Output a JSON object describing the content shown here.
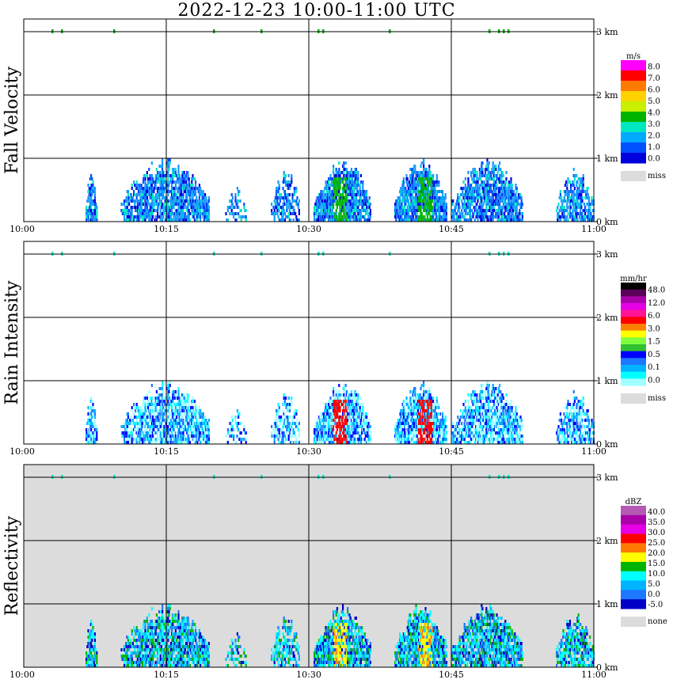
{
  "title": "2022-12-23   10:00-11:00 UTC",
  "chart_data": [
    {
      "type": "heatmap",
      "id": "fall-velocity",
      "ylabel": "Fall Velocity",
      "x_ticks": [
        "10:00",
        "10:15",
        "10:30",
        "10:45",
        "11:00"
      ],
      "y_ticks": [
        "0 km",
        "1 km",
        "2 km",
        "3 km"
      ],
      "xlim": [
        "10:00",
        "11:00"
      ],
      "ylim_km": [
        0,
        3.2
      ],
      "grid": true,
      "background": "#ffffff",
      "legend": {
        "unit": "m/s",
        "labels": [
          "8.0",
          "7.0",
          "6.0",
          "5.0",
          "4.0",
          "3.0",
          "2.0",
          "1.0",
          "0.0"
        ],
        "colors": [
          "#ff00ff",
          "#ff0000",
          "#ff7a00",
          "#ffd200",
          "#c8f000",
          "#00b400",
          "#00e8c0",
          "#00aaff",
          "#0050ff",
          "#0000dc"
        ],
        "miss_label": "miss",
        "miss_color": "#dcdcdc"
      },
      "cloud_palette": [
        "#0050ff",
        "#0000dc",
        "#1e90ff",
        "#1e90ff",
        "#00aaff",
        "#00e8c0"
      ],
      "cloud_events": [
        {
          "t": [
            6.5,
            7.6
          ],
          "h": 0.85,
          "d": 0.55,
          "peak": null
        },
        {
          "t": [
            10.2,
            19.5
          ],
          "h": 1.0,
          "d": 0.65,
          "peak": null
        },
        {
          "t": [
            21.0,
            23.5
          ],
          "h": 0.55,
          "d": 0.25,
          "peak": null
        },
        {
          "t": [
            26.0,
            29.0
          ],
          "h": 0.85,
          "d": 0.45,
          "peak": null
        },
        {
          "t": [
            30.5,
            36.5
          ],
          "h": 1.0,
          "d": 0.7,
          "peak": [
            32.5,
            34.0
          ]
        },
        {
          "t": [
            39.0,
            44.5
          ],
          "h": 1.0,
          "d": 0.75,
          "peak": [
            41.5,
            43.0
          ]
        },
        {
          "t": [
            45.0,
            52.5
          ],
          "h": 1.0,
          "d": 0.65,
          "peak": null
        },
        {
          "t": [
            56.0,
            60.0
          ],
          "h": 0.85,
          "d": 0.55,
          "peak": null
        }
      ],
      "peak_color": "#00b400",
      "top_echoes": [
        3.0,
        4.0,
        9.5,
        20.0,
        25.0,
        31.0,
        31.5,
        38.5,
        49.0,
        50.0,
        50.5,
        51.0
      ],
      "top_echo_height_km": 3.0
    },
    {
      "type": "heatmap",
      "id": "rain-intensity",
      "ylabel": "Rain Intensity",
      "x_ticks": [
        "10:00",
        "10:15",
        "10:30",
        "10:45",
        "11:00"
      ],
      "y_ticks": [
        "0 km",
        "1 km",
        "2 km",
        "3 km"
      ],
      "xlim": [
        "10:00",
        "11:00"
      ],
      "ylim_km": [
        0,
        3.2
      ],
      "grid": true,
      "background": "#ffffff",
      "legend": {
        "unit": "mm/hr",
        "labels": [
          "48.0",
          "12.0",
          "6.0",
          "3.0",
          "1.5",
          "0.5",
          "0.1",
          "0.0"
        ],
        "colors": [
          "#000000",
          "#5a005a",
          "#aa00aa",
          "#e600e6",
          "#ff1493",
          "#ff0000",
          "#ff8000",
          "#ffff00",
          "#80ff40",
          "#30c030",
          "#0000ff",
          "#1e78ff",
          "#00b4ff",
          "#00ffff",
          "#a0ffff"
        ],
        "miss_label": "miss",
        "miss_color": "#dcdcdc"
      },
      "cloud_palette": [
        "#a0ffff",
        "#a0ffff",
        "#00ffff",
        "#00b4ff",
        "#1e78ff",
        "#0000ff"
      ],
      "cloud_events": [
        {
          "t": [
            6.5,
            7.6
          ],
          "h": 0.85,
          "d": 0.55,
          "peak": null
        },
        {
          "t": [
            10.2,
            19.5
          ],
          "h": 1.0,
          "d": 0.65,
          "peak": null
        },
        {
          "t": [
            21.0,
            23.5
          ],
          "h": 0.55,
          "d": 0.25,
          "peak": null
        },
        {
          "t": [
            26.0,
            29.0
          ],
          "h": 0.85,
          "d": 0.45,
          "peak": null
        },
        {
          "t": [
            30.5,
            36.5
          ],
          "h": 1.0,
          "d": 0.7,
          "peak": [
            32.5,
            34.0
          ]
        },
        {
          "t": [
            39.0,
            44.5
          ],
          "h": 1.0,
          "d": 0.75,
          "peak": [
            41.5,
            43.0
          ]
        },
        {
          "t": [
            45.0,
            52.5
          ],
          "h": 1.0,
          "d": 0.65,
          "peak": null
        },
        {
          "t": [
            56.0,
            60.0
          ],
          "h": 0.85,
          "d": 0.55,
          "peak": null
        }
      ],
      "peak_color": "#ff0000",
      "top_echoes": [
        3.0,
        4.0,
        9.5,
        20.0,
        25.0,
        31.0,
        31.5,
        38.5,
        49.0,
        50.0,
        50.5,
        51.0
      ],
      "top_echo_height_km": 3.0
    },
    {
      "type": "heatmap",
      "id": "reflectivity",
      "ylabel": "Reflectivity",
      "x_ticks": [
        "10:00",
        "10:15",
        "10:30",
        "10:45",
        "11:00"
      ],
      "y_ticks": [
        "0 km",
        "1 km",
        "2 km",
        "3 km"
      ],
      "xlim": [
        "10:00",
        "11:00"
      ],
      "ylim_km": [
        0,
        3.2
      ],
      "grid": true,
      "background": "#dcdcdc",
      "legend": {
        "unit": "dBZ",
        "labels": [
          "40.0",
          "35.0",
          "30.0",
          "25.0",
          "20.0",
          "15.0",
          "10.0",
          "5.0",
          "0.0",
          "-5.0"
        ],
        "colors": [
          "#b45ab4",
          "#aa00aa",
          "#e600e6",
          "#ff0000",
          "#ff7a00",
          "#ffff00",
          "#00b400",
          "#00ffff",
          "#00b4ff",
          "#1e78ff",
          "#0000c8"
        ],
        "miss_label": "none",
        "miss_color": "#dcdcdc"
      },
      "cloud_palette": [
        "#00ffff",
        "#00b4ff",
        "#1e78ff",
        "#0000c8",
        "#00ffff",
        "#00b400"
      ],
      "cloud_events": [
        {
          "t": [
            6.5,
            7.6
          ],
          "h": 0.85,
          "d": 0.55,
          "peak": null
        },
        {
          "t": [
            10.2,
            19.5
          ],
          "h": 1.0,
          "d": 0.65,
          "peak": null
        },
        {
          "t": [
            21.0,
            23.5
          ],
          "h": 0.55,
          "d": 0.25,
          "peak": null
        },
        {
          "t": [
            26.0,
            29.0
          ],
          "h": 0.85,
          "d": 0.45,
          "peak": null
        },
        {
          "t": [
            30.5,
            36.5
          ],
          "h": 1.0,
          "d": 0.7,
          "peak": [
            32.5,
            34.0
          ]
        },
        {
          "t": [
            39.0,
            44.5
          ],
          "h": 1.0,
          "d": 0.75,
          "peak": [
            41.5,
            43.0
          ]
        },
        {
          "t": [
            45.0,
            52.5
          ],
          "h": 1.0,
          "d": 0.65,
          "peak": null
        },
        {
          "t": [
            56.0,
            60.0
          ],
          "h": 0.85,
          "d": 0.55,
          "peak": null
        }
      ],
      "peak_color": "#ffff00",
      "peak_core_color": "#ff7a00",
      "top_echoes": [
        3.0,
        4.0,
        9.5,
        20.0,
        25.0,
        31.0,
        31.5,
        38.5,
        49.0,
        50.0,
        50.5,
        51.0
      ],
      "top_echo_height_km": 3.0
    }
  ]
}
